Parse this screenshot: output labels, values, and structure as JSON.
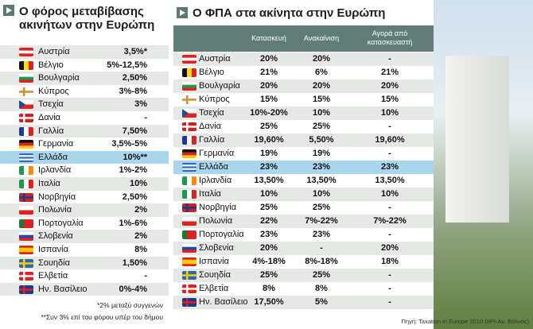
{
  "left": {
    "title": "Ο φόρος μεταβίβασης ακινήτων στην Ευρώπη",
    "rows": [
      {
        "country": "Αυστρία",
        "value": "3,5%*"
      },
      {
        "country": "Βέλγιο",
        "value": "5%-12,5%"
      },
      {
        "country": "Βουλγαρία",
        "value": "2,50%"
      },
      {
        "country": "Κύπρος",
        "value": "3%-8%"
      },
      {
        "country": "Τσεχία",
        "value": "3%"
      },
      {
        "country": "Δανία",
        "value": "-"
      },
      {
        "country": "Γαλλία",
        "value": "7,50%"
      },
      {
        "country": "Γερμανία",
        "value": "3,5%-5%"
      },
      {
        "country": "Ελλάδα",
        "value": "10%**"
      },
      {
        "country": "Ιρλανδία",
        "value": "1%-2%"
      },
      {
        "country": "Ιταλία",
        "value": "10%"
      },
      {
        "country": "Νορβηγία",
        "value": "2,50%"
      },
      {
        "country": "Πολωνία",
        "value": "2%"
      },
      {
        "country": "Πορτογαλία",
        "value": "1%-6%"
      },
      {
        "country": "Σλοβενία",
        "value": "2%"
      },
      {
        "country": "Ισπανία",
        "value": "8%"
      },
      {
        "country": "Σουηδία",
        "value": "1,50%"
      },
      {
        "country": "Ελβετία",
        "value": "-"
      },
      {
        "country": "Ην. Βασίλειο",
        "value": "0%-4%"
      }
    ],
    "notes": [
      "*2% μεταξύ συγγενών",
      "**Συν 3% επί του φόρου υπέρ του δήμου"
    ]
  },
  "right": {
    "title": "Ο ΦΠΑ στα ακίνητα στην Ευρώπη",
    "headers": [
      "Κατασκευή",
      "Ανακαίνιση",
      "Αγορά από κατασκευαστή"
    ],
    "rows": [
      {
        "country": "Αυστρία",
        "values": [
          "20%",
          "20%",
          "-"
        ]
      },
      {
        "country": "Βέλγιο",
        "values": [
          "21%",
          "6%",
          "21%"
        ]
      },
      {
        "country": "Βουλγαρία",
        "values": [
          "20%",
          "20%",
          "20%"
        ]
      },
      {
        "country": "Κύπρος",
        "values": [
          "15%",
          "15%",
          "15%"
        ]
      },
      {
        "country": "Τσεχία",
        "values": [
          "10%-20%",
          "10%",
          "10%"
        ]
      },
      {
        "country": "Δανία",
        "values": [
          "25%",
          "25%",
          "-"
        ]
      },
      {
        "country": "Γαλλία",
        "values": [
          "19,60%",
          "5,50%",
          "19,60%"
        ]
      },
      {
        "country": "Γερμανία",
        "values": [
          "19%",
          "19%",
          "-"
        ]
      },
      {
        "country": "Ελλάδα",
        "values": [
          "23%",
          "23%",
          "23%"
        ]
      },
      {
        "country": "Ιρλανδία",
        "values": [
          "13,50%",
          "13,50%",
          "13,50%"
        ]
      },
      {
        "country": "Ιταλία",
        "values": [
          "10%",
          "10%",
          "10%"
        ]
      },
      {
        "country": "Νορβηγία",
        "values": [
          "25%",
          "25%",
          "-"
        ]
      },
      {
        "country": "Πολωνία",
        "values": [
          "22%",
          "7%-22%",
          "7%-22%"
        ]
      },
      {
        "country": "Πορτογαλία",
        "values": [
          "23%",
          "23%",
          "-"
        ]
      },
      {
        "country": "Σλοβενία",
        "values": [
          "20%",
          "-",
          "20%"
        ]
      },
      {
        "country": "Ισπανία",
        "values": [
          "4%-18%",
          "8%-18%",
          "18%"
        ]
      },
      {
        "country": "Σουηδία",
        "values": [
          "25%",
          "25%",
          "-"
        ]
      },
      {
        "country": "Ελβετία",
        "values": [
          "8%",
          "8%",
          "-"
        ]
      },
      {
        "country": "Ην. Βασίλειο",
        "values": [
          "17,50%",
          "5%",
          "-"
        ]
      }
    ],
    "source": "Πηγή: Taxation in Europe 2010 (ΙΙΡΙ-Αν. Βόλνος)"
  }
}
